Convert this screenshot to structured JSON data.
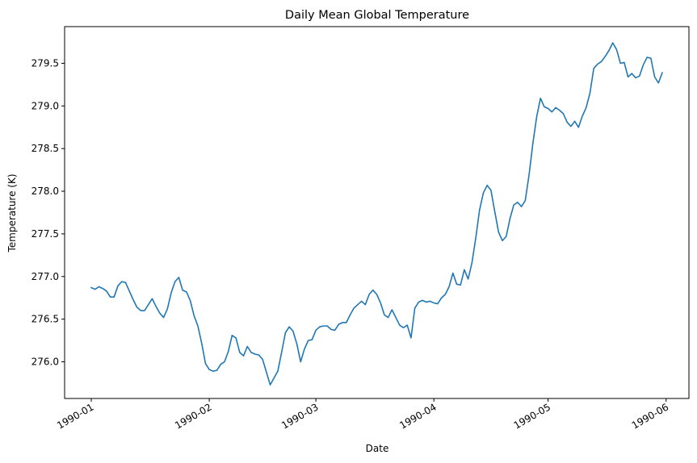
{
  "chart_data": {
    "type": "line",
    "title": "Daily Mean Global Temperature",
    "xlabel": "Date",
    "ylabel": "Temperature (K)",
    "grid": false,
    "legend": "none",
    "line_color": "#1f77b4",
    "x_start_date": "1990-01-01",
    "x_step_days": 1,
    "xlim": [
      "1989-12-25",
      "1990-06-07"
    ],
    "ylim": [
      275.57,
      279.93
    ],
    "x_ticks": [
      {
        "date": "1990-01-01",
        "label": "1990-01"
      },
      {
        "date": "1990-02-01",
        "label": "1990-02"
      },
      {
        "date": "1990-03-01",
        "label": "1990-03"
      },
      {
        "date": "1990-04-01",
        "label": "1990-04"
      },
      {
        "date": "1990-05-01",
        "label": "1990-05"
      },
      {
        "date": "1990-06-01",
        "label": "1990-06"
      }
    ],
    "y_ticks": [
      {
        "value": 276.0,
        "label": "276.0"
      },
      {
        "value": 276.5,
        "label": "276.5"
      },
      {
        "value": 277.0,
        "label": "277.0"
      },
      {
        "value": 277.5,
        "label": "277.5"
      },
      {
        "value": 278.0,
        "label": "278.0"
      },
      {
        "value": 278.5,
        "label": "278.5"
      },
      {
        "value": 279.0,
        "label": "279.0"
      },
      {
        "value": 279.5,
        "label": "279.5"
      }
    ],
    "series": [
      {
        "name": "",
        "values": [
          276.87,
          276.85,
          276.88,
          276.86,
          276.83,
          276.76,
          276.76,
          276.89,
          276.94,
          276.93,
          276.83,
          276.73,
          276.64,
          276.6,
          276.6,
          276.67,
          276.74,
          276.65,
          276.57,
          276.52,
          276.62,
          276.81,
          276.94,
          276.99,
          276.84,
          276.82,
          276.72,
          276.54,
          276.42,
          276.22,
          275.98,
          275.91,
          275.89,
          275.9,
          275.97,
          276.0,
          276.12,
          276.31,
          276.28,
          276.11,
          276.07,
          276.18,
          276.11,
          276.09,
          276.08,
          276.03,
          275.88,
          275.73,
          275.81,
          275.89,
          276.11,
          276.34,
          276.41,
          276.36,
          276.21,
          276.0,
          276.15,
          276.25,
          276.26,
          276.37,
          276.41,
          276.42,
          276.42,
          276.38,
          276.37,
          276.44,
          276.46,
          276.46,
          276.55,
          276.63,
          276.67,
          276.71,
          276.67,
          276.79,
          276.84,
          276.79,
          276.69,
          276.55,
          276.52,
          276.61,
          276.52,
          276.43,
          276.4,
          276.43,
          276.28,
          276.63,
          276.7,
          276.72,
          276.7,
          276.71,
          276.69,
          276.68,
          276.75,
          276.79,
          276.88,
          277.04,
          276.91,
          276.9,
          277.08,
          276.97,
          277.16,
          277.45,
          277.78,
          277.98,
          278.07,
          278.01,
          277.76,
          277.52,
          277.42,
          277.47,
          277.68,
          277.84,
          277.87,
          277.82,
          277.89,
          278.19,
          278.56,
          278.87,
          279.09,
          278.99,
          278.97,
          278.93,
          278.98,
          278.95,
          278.91,
          278.81,
          278.76,
          278.82,
          278.75,
          278.88,
          278.98,
          279.15,
          279.44,
          279.49,
          279.52,
          279.58,
          279.65,
          279.74,
          279.66,
          279.5,
          279.51,
          279.34,
          279.38,
          279.33,
          279.35,
          279.48,
          279.57,
          279.56,
          279.34,
          279.27,
          279.39
        ]
      }
    ]
  }
}
